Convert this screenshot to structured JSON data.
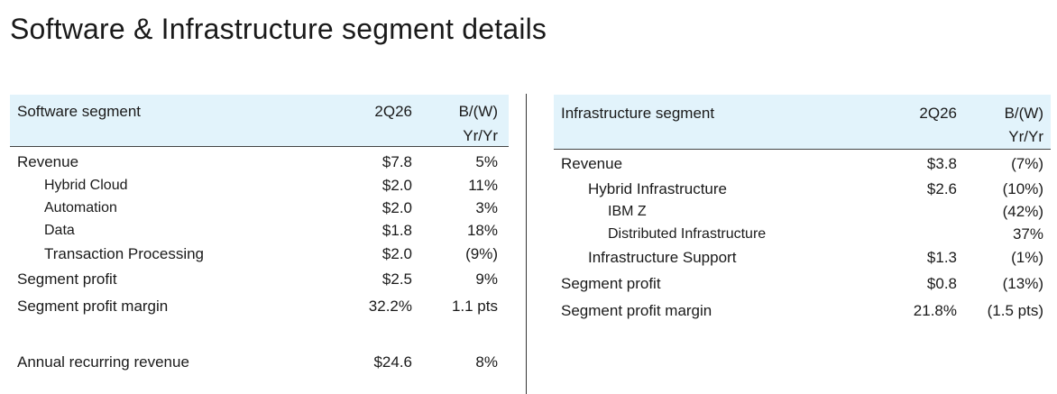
{
  "title": "Software & Infrastructure segment details",
  "software": {
    "header": {
      "name": "Software segment",
      "period": "2Q26",
      "change_line1": "B/(W)",
      "change_line2": "Yr/Yr"
    },
    "rows": [
      {
        "label": "Revenue",
        "value": "$7.8",
        "change": "5%"
      },
      {
        "label": "Hybrid Cloud",
        "value": "$2.0",
        "change": "11%"
      },
      {
        "label": "Automation",
        "value": "$2.0",
        "change": "3%"
      },
      {
        "label": "Data",
        "value": "$1.8",
        "change": "18%"
      },
      {
        "label": "Transaction Processing",
        "value": "$2.0",
        "change": "(9%)"
      },
      {
        "label": "Segment profit",
        "value": "$2.5",
        "change": "9%"
      },
      {
        "label": "Segment profit margin",
        "value": "32.2%",
        "change": "1.1 pts"
      },
      {
        "label": "Annual recurring revenue",
        "value": "$24.6",
        "change": "8%"
      }
    ]
  },
  "infrastructure": {
    "header": {
      "name": "Infrastructure segment",
      "period": "2Q26",
      "change_line1": "B/(W)",
      "change_line2": "Yr/Yr"
    },
    "rows": [
      {
        "label": "Revenue",
        "value": "$3.8",
        "change": "(7%)"
      },
      {
        "label": "Hybrid Infrastructure",
        "value": "$2.6",
        "change": "(10%)"
      },
      {
        "label": "IBM Z",
        "value": "",
        "change": "(42%)"
      },
      {
        "label": "Distributed Infrastructure",
        "value": "",
        "change": "37%"
      },
      {
        "label": "Infrastructure Support",
        "value": "$1.3",
        "change": "(1%)"
      },
      {
        "label": "Segment profit",
        "value": "$0.8",
        "change": "(13%)"
      },
      {
        "label": "Segment profit margin",
        "value": "21.8%",
        "change": "(1.5 pts)"
      }
    ]
  }
}
